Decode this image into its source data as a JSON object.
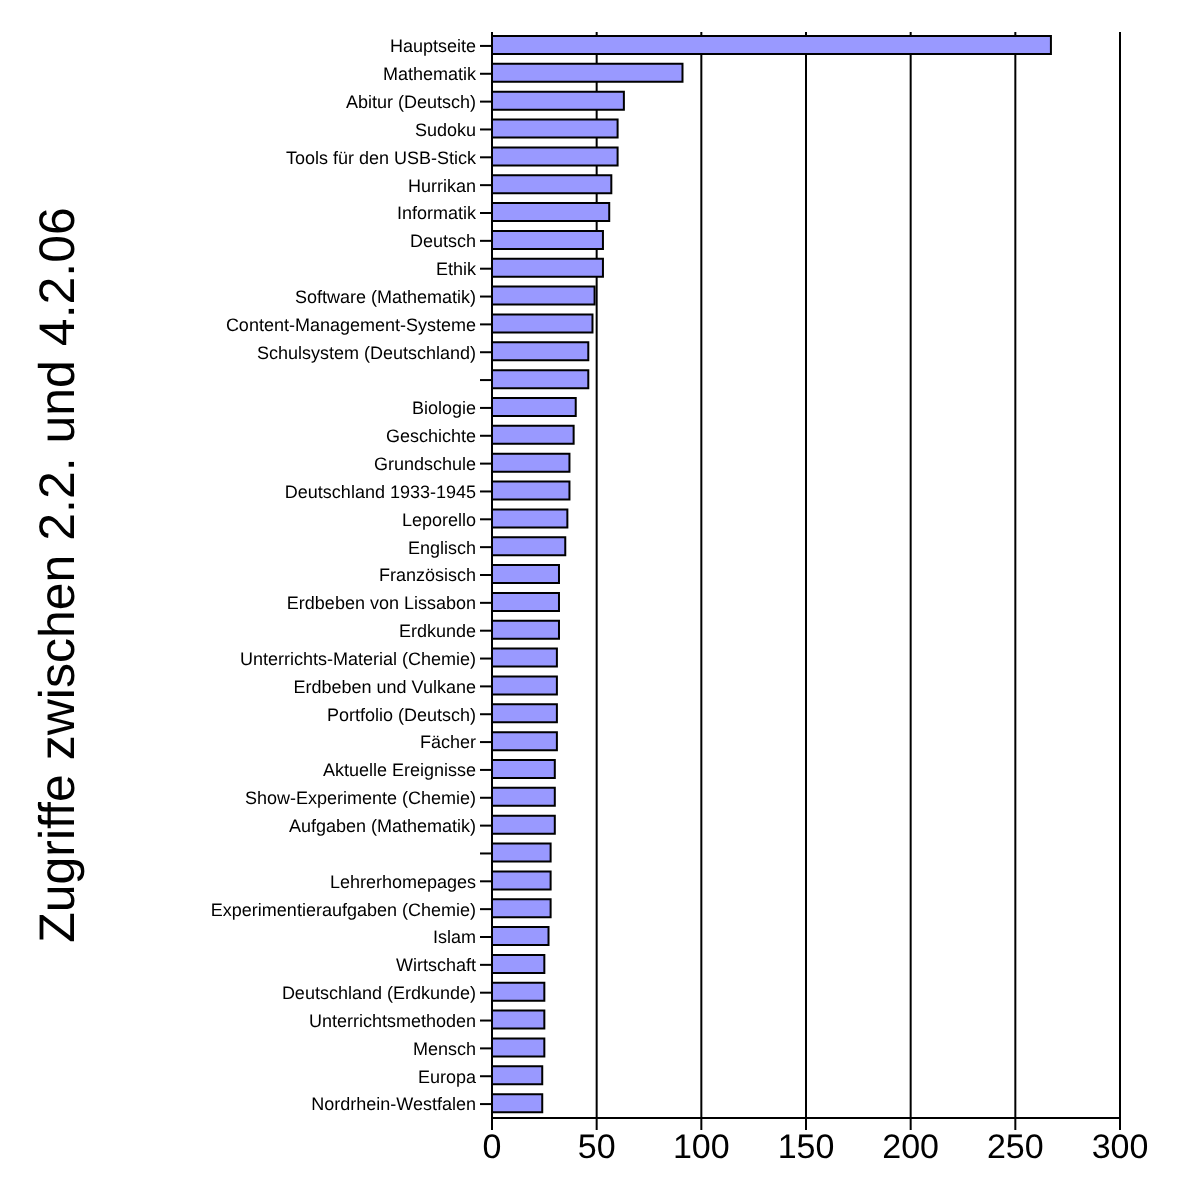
{
  "chart_data": {
    "type": "bar",
    "orientation": "horizontal",
    "ylabel": "Zugriffe zwischen 2.2. und 4.2.06",
    "categories": [
      "Hauptseite",
      "Mathematik",
      "Abitur (Deutsch)",
      "Sudoku",
      "Tools für den USB-Stick",
      "Hurrikan",
      "Informatik",
      "Deutsch",
      "Ethik",
      "Software (Mathematik)",
      "Content-Management-Systeme",
      "Schulsystem (Deutschland)",
      null,
      "Biologie",
      "Geschichte",
      "Grundschule",
      "Deutschland 1933-1945",
      "Leporello",
      "Englisch",
      "Französisch",
      "Erdbeben von Lissabon",
      "Erdkunde",
      "Unterrichts-Material (Chemie)",
      "Erdbeben und Vulkane",
      "Portfolio (Deutsch)",
      "Fächer",
      "Aktuelle Ereignisse",
      "Show-Experimente (Chemie)",
      "Aufgaben (Mathematik)",
      null,
      "Lehrerhomepages",
      "Experimentieraufgaben (Chemie)",
      "Islam",
      "Wirtschaft",
      "Deutschland (Erdkunde)",
      "Unterrichtsmethoden",
      "Mensch",
      "Europa",
      "Nordrhein-Westfalen"
    ],
    "values": [
      267,
      91,
      63,
      60,
      60,
      57,
      56,
      53,
      53,
      49,
      48,
      46,
      46,
      40,
      39,
      37,
      37,
      36,
      35,
      32,
      32,
      32,
      31,
      31,
      31,
      31,
      30,
      30,
      30,
      28,
      28,
      28,
      27,
      25,
      25,
      25,
      25,
      24,
      24
    ],
    "color": "#9999ff",
    "xlim": [
      0,
      300
    ],
    "xticks": [
      0,
      50,
      100,
      150,
      200,
      250,
      300
    ],
    "grid": "x"
  }
}
